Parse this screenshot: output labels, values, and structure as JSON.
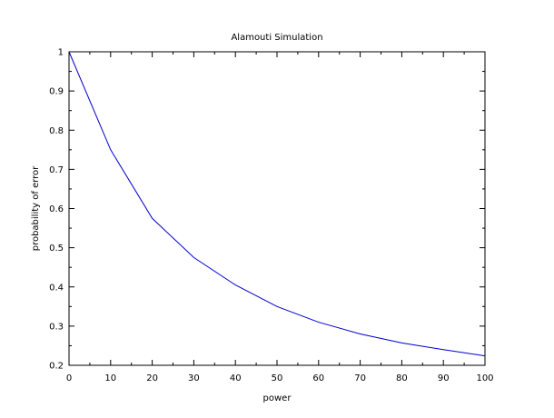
{
  "chart_data": {
    "type": "line",
    "title": "Alamouti Simulation",
    "xlabel": "power",
    "ylabel": "probability of error",
    "xlim": [
      0,
      100
    ],
    "ylim": [
      0.2,
      1
    ],
    "xticks": [
      "0",
      "10",
      "20",
      "30",
      "40",
      "50",
      "60",
      "70",
      "80",
      "90",
      "100"
    ],
    "yticks": [
      "0.2",
      "0.3",
      "0.4",
      "0.5",
      "0.6",
      "0.7",
      "0.8",
      "0.9",
      "1"
    ],
    "grid": false,
    "legend": "none",
    "series": [
      {
        "color": "#0000cc",
        "x": [
          0,
          10,
          20,
          30,
          40,
          50,
          60,
          70,
          80,
          90,
          100
        ],
        "y": [
          1.0,
          0.75,
          0.575,
          0.475,
          0.405,
          0.35,
          0.31,
          0.28,
          0.257,
          0.24,
          0.224
        ]
      }
    ]
  }
}
